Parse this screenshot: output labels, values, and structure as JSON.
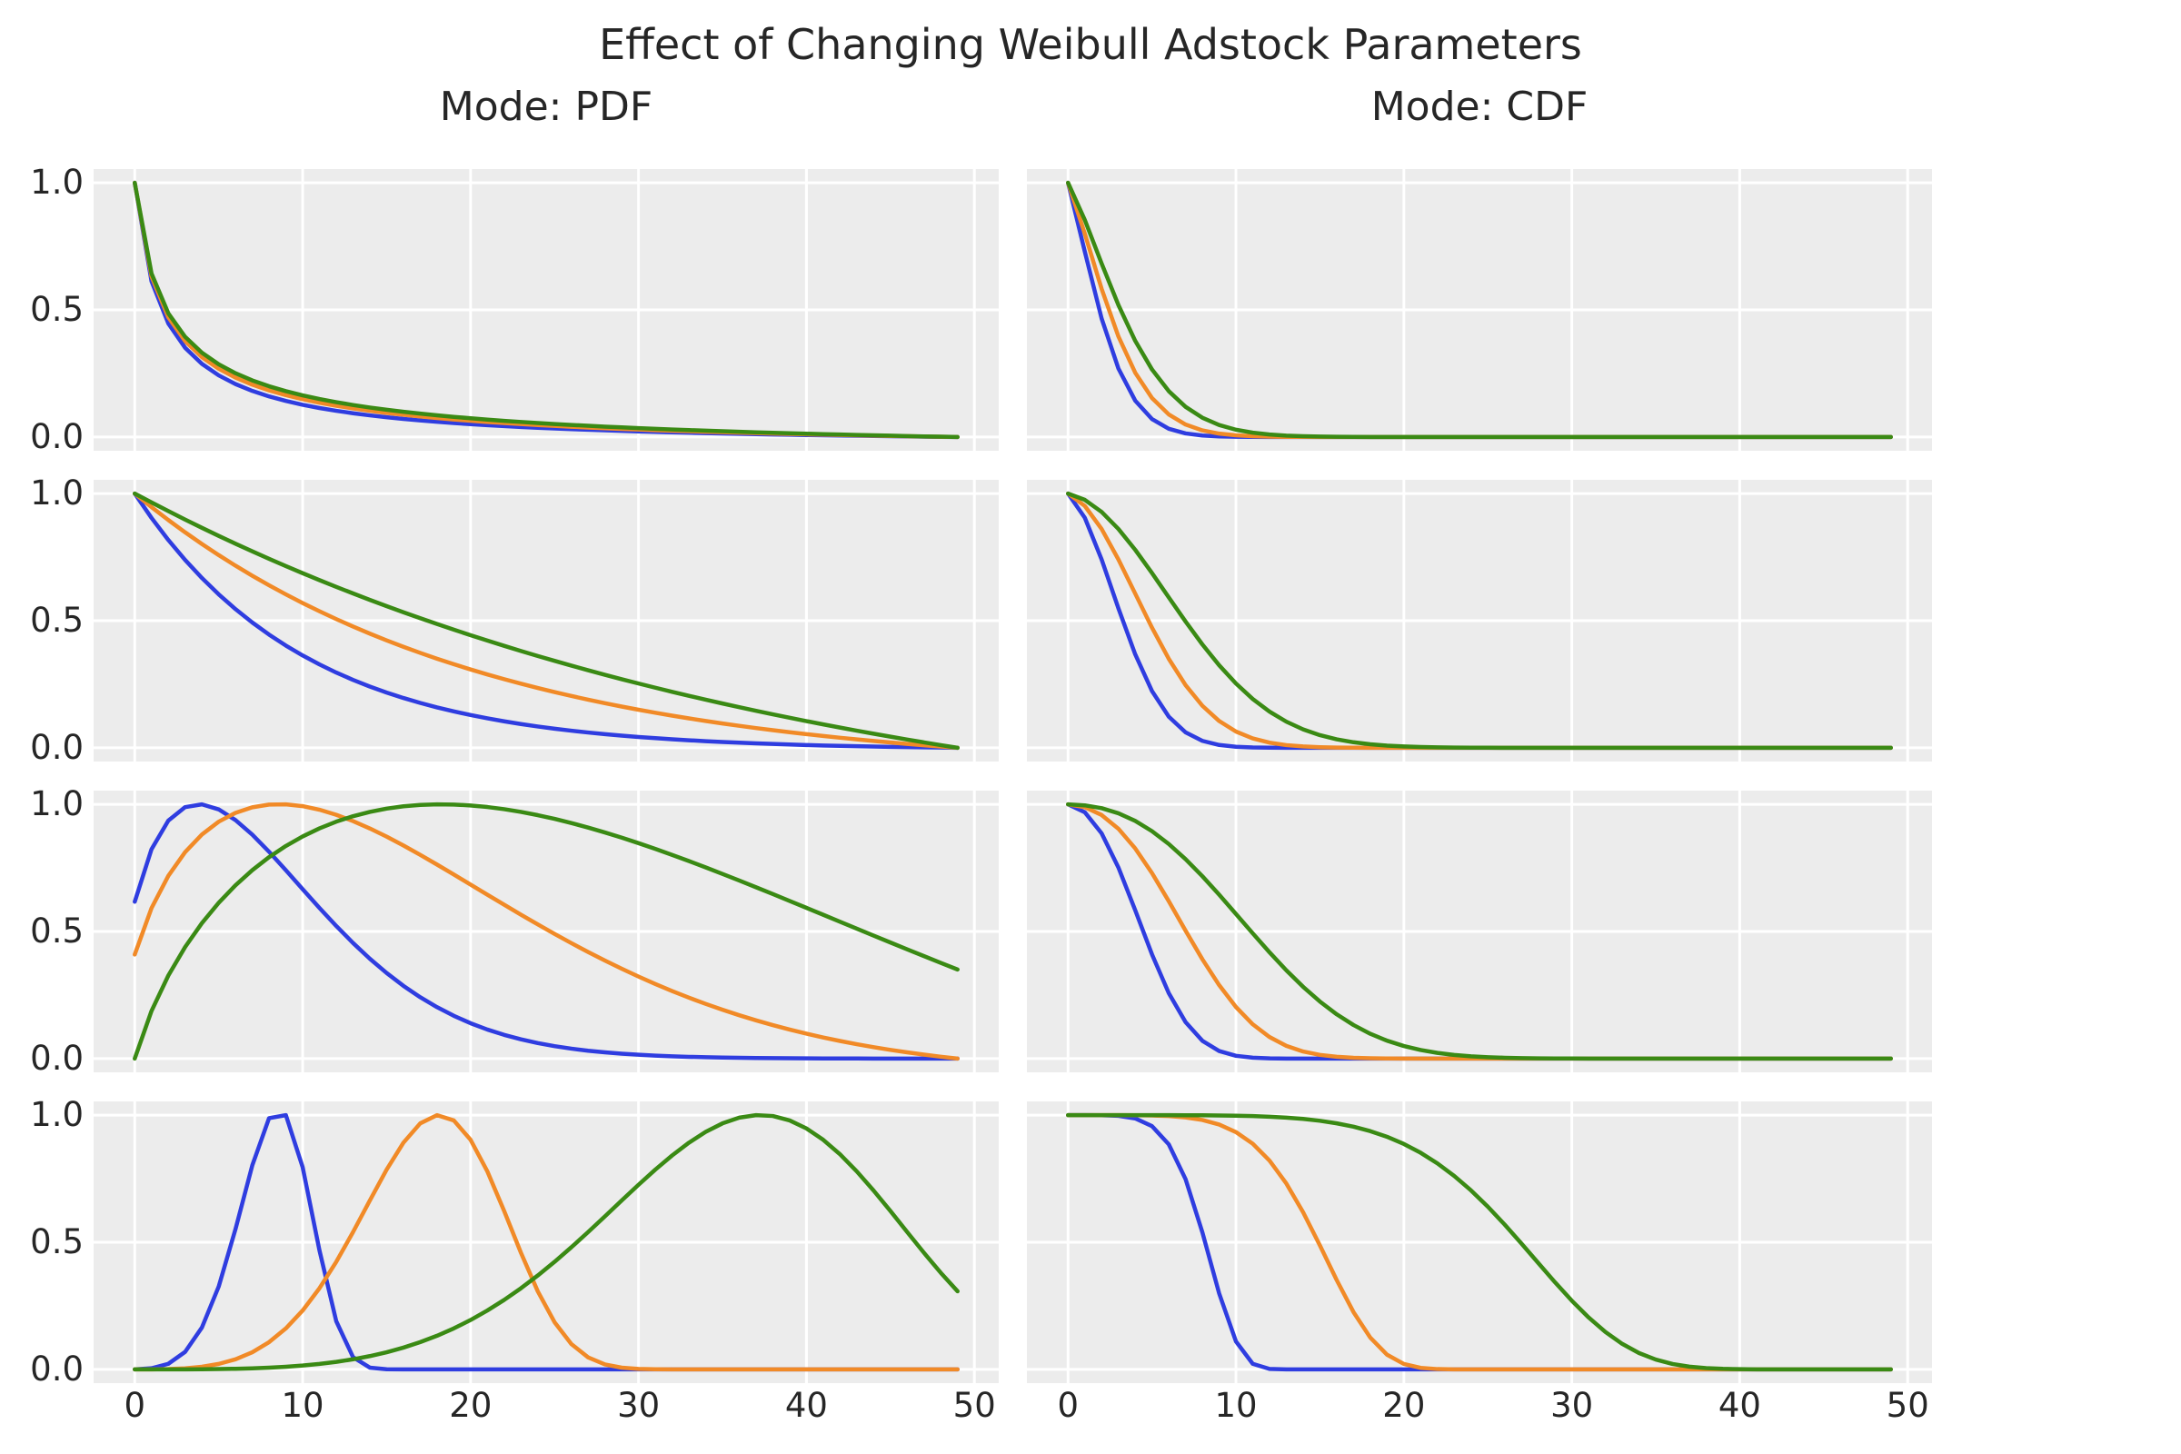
{
  "figure": {
    "title": "Effect of Changing Weibull Adstock Parameters",
    "background_color": "#ffffff",
    "panel_background_color": "#ececec",
    "grid_color": "#ffffff",
    "text_color": "#262626"
  },
  "axes": {
    "x_ticks": [
      "0",
      "10",
      "20",
      "30",
      "40",
      "50"
    ],
    "x_tick_values": [
      0,
      10,
      20,
      30,
      40,
      50
    ],
    "y_ticks": [
      "1.0",
      "0.5",
      "0.0"
    ],
    "y_tick_values": [
      1.0,
      0.5,
      0.0
    ],
    "x_tick_labels_shown_on": "bottom row only",
    "y_tick_labels_shown_on": "left column only"
  },
  "chart_data": {
    "type": "line",
    "title": "Effect of Changing Weibull Adstock Parameters",
    "grid": true,
    "legend": false,
    "layout": "4 rows x 2 columns of subplots",
    "x": {
      "range_shown": [
        -2.45,
        51.45
      ],
      "data_points": "integers 0 to 49",
      "ticks": [
        0,
        10,
        20,
        30,
        40,
        50
      ]
    },
    "y": {
      "range_shown": [
        -0.054,
        1.054
      ],
      "ticks": [
        1.0,
        0.5,
        0.0
      ]
    },
    "columns": [
      {
        "title": "Mode: PDF",
        "mode": "pdf"
      },
      {
        "title": "Mode: CDF",
        "mode": "cdf"
      }
    ],
    "row_shapes": [
      0.5,
      1.0,
      1.5,
      5.0
    ],
    "series_colors": [
      {
        "color_name": "blue",
        "hex": "#2f3de0",
        "scale": 10
      },
      {
        "color_name": "orange",
        "hex": "#f18a27",
        "scale": 20
      },
      {
        "color_name": "green",
        "hex": "#3a8a14",
        "scale": 40
      }
    ],
    "curve_model": {
      "pdf": "y[i] = minmax_normalize over i=0..49 of w(i+1), w(t)=(t/scale)^(shape-1)*exp(-(t/scale)^shape)",
      "cdf": "y[0]=1 ; y[i] = exp(-sum_{j=1..i} (j/scale)^shape)  (cumulative product of Weibull survival steps)"
    },
    "panels": [
      {
        "row": 1,
        "column": "Mode: PDF",
        "shape": 0.5,
        "series": [
          {
            "color_name": "blue",
            "scale": 10,
            "key_points": [
              [
                0,
                1.0
              ],
              [
                2,
                0.45
              ],
              [
                5,
                0.24
              ],
              [
                10,
                0.13
              ],
              [
                20,
                0.05
              ],
              [
                49,
                0.0
              ]
            ]
          },
          {
            "color_name": "orange",
            "scale": 20,
            "key_points": [
              [
                0,
                1.0
              ],
              [
                2,
                0.47
              ],
              [
                5,
                0.27
              ],
              [
                10,
                0.17
              ],
              [
                20,
                0.06
              ],
              [
                49,
                0.0
              ]
            ]
          },
          {
            "color_name": "green",
            "scale": 40,
            "key_points": [
              [
                0,
                1.0
              ],
              [
                2,
                0.51
              ],
              [
                5,
                0.3
              ],
              [
                10,
                0.18
              ],
              [
                20,
                0.09
              ],
              [
                49,
                0.01
              ]
            ]
          }
        ]
      },
      {
        "row": 1,
        "column": "Mode: CDF",
        "shape": 0.5,
        "series": [
          {
            "color_name": "blue",
            "scale": 10,
            "key_points": [
              [
                0,
                1.0
              ],
              [
                1,
                0.73
              ],
              [
                2,
                0.47
              ],
              [
                5,
                0.07
              ],
              [
                8,
                0.01
              ],
              [
                49,
                0.0
              ]
            ]
          },
          {
            "color_name": "orange",
            "scale": 20,
            "key_points": [
              [
                0,
                1.0
              ],
              [
                2,
                0.58
              ],
              [
                5,
                0.15
              ],
              [
                10,
                0.01
              ],
              [
                49,
                0.0
              ]
            ]
          },
          {
            "color_name": "green",
            "scale": 40,
            "key_points": [
              [
                0,
                1.0
              ],
              [
                2,
                0.65
              ],
              [
                5,
                0.27
              ],
              [
                10,
                0.03
              ],
              [
                49,
                0.0
              ]
            ]
          }
        ]
      },
      {
        "row": 2,
        "column": "Mode: PDF",
        "shape": 1.0,
        "series": [
          {
            "color_name": "blue",
            "scale": 10,
            "key_points": [
              [
                0,
                1.0
              ],
              [
                10,
                0.36
              ],
              [
                20,
                0.12
              ],
              [
                30,
                0.03
              ],
              [
                49,
                0.0
              ]
            ]
          },
          {
            "color_name": "orange",
            "scale": 20,
            "key_points": [
              [
                0,
                1.0
              ],
              [
                10,
                0.6
              ],
              [
                20,
                0.33
              ],
              [
                30,
                0.17
              ],
              [
                49,
                0.0
              ]
            ]
          },
          {
            "color_name": "green",
            "scale": 40,
            "key_points": [
              [
                0,
                1.0
              ],
              [
                10,
                0.72
              ],
              [
                20,
                0.46
              ],
              [
                30,
                0.27
              ],
              [
                40,
                0.12
              ],
              [
                49,
                0.0
              ]
            ]
          }
        ]
      },
      {
        "row": 2,
        "column": "Mode: CDF",
        "shape": 1.0,
        "series": [
          {
            "color_name": "blue",
            "scale": 10,
            "key_points": [
              [
                0,
                1.0
              ],
              [
                3,
                0.55
              ],
              [
                5,
                0.22
              ],
              [
                8,
                0.03
              ],
              [
                10,
                0.0
              ]
            ]
          },
          {
            "color_name": "orange",
            "scale": 20,
            "key_points": [
              [
                0,
                1.0
              ],
              [
                5,
                0.47
              ],
              [
                10,
                0.06
              ],
              [
                15,
                0.0
              ]
            ]
          },
          {
            "color_name": "green",
            "scale": 40,
            "key_points": [
              [
                0,
                1.0
              ],
              [
                5,
                0.69
              ],
              [
                10,
                0.25
              ],
              [
                15,
                0.05
              ],
              [
                20,
                0.01
              ],
              [
                49,
                0.0
              ]
            ]
          }
        ]
      },
      {
        "row": 3,
        "column": "Mode: PDF",
        "shape": 1.5,
        "series": [
          {
            "color_name": "blue",
            "scale": 10,
            "key_points": [
              [
                0,
                0.62
              ],
              [
                4,
                1.0
              ],
              [
                10,
                0.67
              ],
              [
                20,
                0.14
              ],
              [
                30,
                0.01
              ],
              [
                49,
                0.0
              ]
            ]
          },
          {
            "color_name": "orange",
            "scale": 20,
            "key_points": [
              [
                0,
                0.41
              ],
              [
                9,
                1.0
              ],
              [
                20,
                0.68
              ],
              [
                30,
                0.32
              ],
              [
                40,
                0.1
              ],
              [
                49,
                0.0
              ]
            ]
          },
          {
            "color_name": "green",
            "scale": 40,
            "key_points": [
              [
                0,
                0.0
              ],
              [
                18,
                1.0
              ],
              [
                30,
                0.85
              ],
              [
                40,
                0.59
              ],
              [
                49,
                0.35
              ]
            ]
          }
        ]
      },
      {
        "row": 3,
        "column": "Mode: CDF",
        "shape": 1.5,
        "series": [
          {
            "color_name": "blue",
            "scale": 10,
            "key_points": [
              [
                0,
                1.0
              ],
              [
                3,
                0.75
              ],
              [
                5,
                0.41
              ],
              [
                7,
                0.14
              ],
              [
                10,
                0.01
              ],
              [
                49,
                0.0
              ]
            ]
          },
          {
            "color_name": "orange",
            "scale": 20,
            "key_points": [
              [
                0,
                1.0
              ],
              [
                5,
                0.73
              ],
              [
                10,
                0.26
              ],
              [
                15,
                0.03
              ],
              [
                49,
                0.0
              ]
            ]
          },
          {
            "color_name": "green",
            "scale": 40,
            "key_points": [
              [
                0,
                1.0
              ],
              [
                10,
                0.62
              ],
              [
                15,
                0.3
              ],
              [
                20,
                0.09
              ],
              [
                25,
                0.01
              ],
              [
                49,
                0.0
              ]
            ]
          }
        ]
      },
      {
        "row": 4,
        "column": "Mode: PDF",
        "shape": 5.0,
        "series": [
          {
            "color_name": "blue",
            "scale": 10,
            "key_points": [
              [
                0,
                0.0
              ],
              [
                5,
                0.14
              ],
              [
                9,
                1.0
              ],
              [
                12,
                0.19
              ],
              [
                14,
                0.01
              ],
              [
                49,
                0.0
              ]
            ]
          },
          {
            "color_name": "orange",
            "scale": 20,
            "key_points": [
              [
                0,
                0.0
              ],
              [
                12,
                0.43
              ],
              [
                18,
                1.0
              ],
              [
                24,
                0.31
              ],
              [
                28,
                0.03
              ],
              [
                49,
                0.0
              ]
            ]
          },
          {
            "color_name": "green",
            "scale": 40,
            "key_points": [
              [
                0,
                0.0
              ],
              [
                22,
                0.28
              ],
              [
                37,
                1.0
              ],
              [
                49,
                0.31
              ]
            ]
          }
        ]
      },
      {
        "row": 4,
        "column": "Mode: CDF",
        "shape": 5.0,
        "series": [
          {
            "color_name": "blue",
            "scale": 10,
            "key_points": [
              [
                0,
                1.0
              ],
              [
                6,
                0.94
              ],
              [
                8,
                0.54
              ],
              [
                9,
                0.3
              ],
              [
                11,
                0.02
              ],
              [
                49,
                0.0
              ]
            ]
          },
          {
            "color_name": "orange",
            "scale": 20,
            "key_points": [
              [
                0,
                1.0
              ],
              [
                12,
                0.82
              ],
              [
                16,
                0.35
              ],
              [
                20,
                0.02
              ],
              [
                49,
                0.0
              ]
            ]
          },
          {
            "color_name": "green",
            "scale": 40,
            "key_points": [
              [
                0,
                1.0
              ],
              [
                20,
                0.89
              ],
              [
                27,
                0.5
              ],
              [
                33,
                0.1
              ],
              [
                38,
                0.01
              ],
              [
                49,
                0.0
              ]
            ]
          }
        ]
      }
    ]
  }
}
